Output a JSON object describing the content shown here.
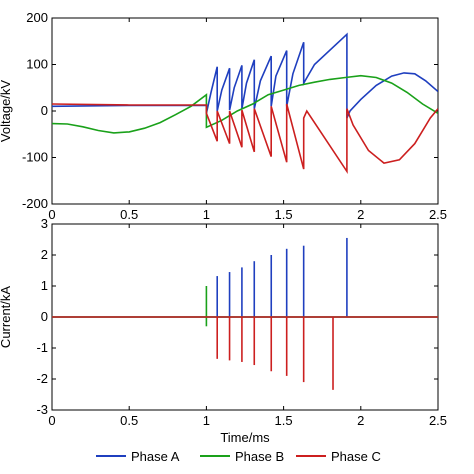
{
  "chart_data": [
    {
      "type": "line",
      "ylabel": "Voltage/kV",
      "xlim": [
        0,
        2.5
      ],
      "ylim": [
        -200,
        200
      ],
      "yticks": [
        -200,
        -100,
        0,
        100,
        200
      ],
      "ytick_labels": [
        "-200",
        "-100",
        "0",
        "100",
        "200"
      ],
      "xticks": [
        0,
        0.5,
        1,
        1.5,
        2,
        2.5
      ],
      "xtick_labels": [
        "0",
        "0.5",
        "1",
        "1.5",
        "2",
        "2.5"
      ],
      "grid": false,
      "series": [
        {
          "name": "Phase A",
          "color": "#1f3fbf",
          "x": [
            0,
            0.5,
            1.0,
            1.0,
            1.03,
            1.07,
            1.07,
            1.1,
            1.15,
            1.15,
            1.18,
            1.23,
            1.23,
            1.26,
            1.31,
            1.31,
            1.35,
            1.42,
            1.42,
            1.45,
            1.52,
            1.52,
            1.56,
            1.63,
            1.63,
            1.7,
            1.91,
            1.91,
            1.93,
            2.0,
            2.1,
            2.2,
            2.28,
            2.35,
            2.42,
            2.5
          ],
          "y": [
            10,
            12,
            12,
            -5,
            40,
            95,
            0,
            45,
            92,
            2,
            50,
            98,
            5,
            60,
            110,
            5,
            65,
            118,
            10,
            75,
            130,
            10,
            80,
            148,
            60,
            100,
            165,
            -15,
            0,
            25,
            55,
            75,
            82,
            80,
            65,
            42
          ]
        },
        {
          "name": "Phase B",
          "color": "#1aa11a",
          "x": [
            0,
            0.1,
            0.2,
            0.3,
            0.4,
            0.5,
            0.6,
            0.7,
            0.8,
            0.9,
            1.0,
            1.0,
            1.1,
            1.2,
            1.3,
            1.4,
            1.5,
            1.6,
            1.7,
            1.8,
            1.9,
            2.0,
            2.1,
            2.2,
            2.3,
            2.4,
            2.5
          ],
          "y": [
            -27,
            -28,
            -34,
            -42,
            -47,
            -45,
            -37,
            -25,
            -8,
            10,
            35,
            -35,
            -20,
            0,
            15,
            35,
            45,
            55,
            62,
            68,
            72,
            76,
            72,
            60,
            40,
            15,
            -5
          ]
        },
        {
          "name": "Phase C",
          "color": "#cc1f1f",
          "x": [
            0,
            0.5,
            1.0,
            1.0,
            1.07,
            1.07,
            1.15,
            1.15,
            1.23,
            1.23,
            1.31,
            1.31,
            1.42,
            1.42,
            1.52,
            1.52,
            1.63,
            1.63,
            1.65,
            1.91,
            1.91,
            1.95,
            2.05,
            2.15,
            2.25,
            2.35,
            2.45,
            2.5
          ],
          "y": [
            15,
            13,
            13,
            -5,
            -65,
            0,
            -70,
            0,
            -78,
            2,
            -88,
            5,
            -98,
            10,
            -110,
            15,
            -125,
            -15,
            0,
            -130,
            5,
            -30,
            -85,
            -112,
            -105,
            -70,
            -15,
            5
          ]
        }
      ]
    },
    {
      "type": "line",
      "xlabel": "Time/ms",
      "ylabel": "Current/kA",
      "xlim": [
        0,
        2.5
      ],
      "ylim": [
        -3,
        3
      ],
      "yticks": [
        -3,
        -2,
        -1,
        0,
        1,
        2,
        3
      ],
      "ytick_labels": [
        "-3",
        "-2",
        "-1",
        "0",
        "1",
        "2",
        "3"
      ],
      "xticks": [
        0,
        0.5,
        1,
        1.5,
        2,
        2.5
      ],
      "xtick_labels": [
        "0",
        "0.5",
        "1",
        "1.5",
        "2",
        "2.5"
      ],
      "grid": false,
      "legend": "bottom-center",
      "series": [
        {
          "name": "Phase A",
          "color": "#1f3fbf",
          "spikes": [
            [
              1.07,
              1.32
            ],
            [
              1.15,
              1.45
            ],
            [
              1.23,
              1.6
            ],
            [
              1.31,
              1.8
            ],
            [
              1.42,
              2.0
            ],
            [
              1.52,
              2.2
            ],
            [
              1.63,
              2.3
            ],
            [
              1.91,
              2.55
            ]
          ]
        },
        {
          "name": "Phase B",
          "color": "#1aa11a",
          "spikes": [
            [
              1.0,
              1.0
            ],
            [
              1.0,
              -0.3
            ]
          ]
        },
        {
          "name": "Phase C",
          "color": "#cc1f1f",
          "spikes": [
            [
              1.07,
              -1.35
            ],
            [
              1.15,
              -1.4
            ],
            [
              1.23,
              -1.45
            ],
            [
              1.31,
              -1.55
            ],
            [
              1.42,
              -1.75
            ],
            [
              1.52,
              -1.9
            ],
            [
              1.63,
              -2.1
            ],
            [
              1.82,
              -2.35
            ]
          ]
        }
      ]
    }
  ],
  "legend": {
    "items": [
      {
        "label": "Phase A",
        "color": "#1f3fbf"
      },
      {
        "label": "Phase B",
        "color": "#1aa11a"
      },
      {
        "label": "Phase C",
        "color": "#cc1f1f"
      }
    ]
  }
}
